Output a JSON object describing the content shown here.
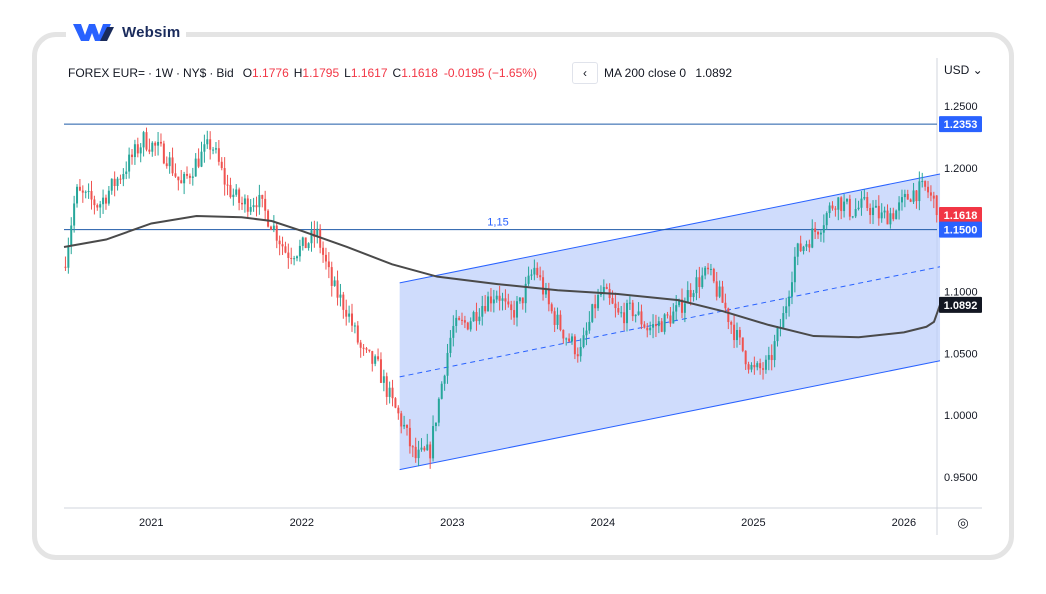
{
  "brand": {
    "name": "Websim",
    "logo_icon": "websim-w-logo-icon",
    "color": "#2962ff"
  },
  "legend": {
    "symbol": "FOREX EUR=",
    "interval": "1W",
    "exchange": "NY$",
    "price_type": "Bid",
    "sep": "·",
    "o_label": "O",
    "o_value": "1.1776",
    "h_label": "H",
    "h_value": "1.1795",
    "l_label": "L",
    "l_value": "1.1617",
    "c_label": "C",
    "c_value": "1.1618",
    "change": "-0.0195 (−1.65%)"
  },
  "collapse_icon": "‹",
  "ma_legend": {
    "label": "MA 200 close 0",
    "value": "1.0892"
  },
  "currency": "USD ⌄",
  "settings_icon": "◎",
  "colors": {
    "up": "#26a69a",
    "down": "#ef5350",
    "channel_fill": "#bbcdfb",
    "channel_line": "#2962ff",
    "ma": "#4a4a4a",
    "hline": "#1e5aa8"
  },
  "chart_data": {
    "type": "candlestick",
    "x_axis": {
      "tick_labels": [
        "2021",
        "2022",
        "2023",
        "2024",
        "2025",
        "2026"
      ]
    },
    "y_axis": {
      "range": [
        0.925,
        1.2645
      ],
      "tick_labels": [
        "1.2500",
        "1.2000",
        "1.1500",
        "1.1000",
        "1.0500",
        "1.0000",
        "0.9500"
      ],
      "tick_values": [
        1.25,
        1.2,
        1.15,
        1.1,
        1.05,
        1.0,
        0.95
      ]
    },
    "price_markers": [
      {
        "value": 1.2353,
        "label": "1.2353",
        "bg": "#2962ff",
        "fg": "#ffffff"
      },
      {
        "value": 1.1618,
        "label": "1.1618",
        "bg": "#f23645",
        "fg": "#ffffff"
      },
      {
        "value": 1.15,
        "label": "1.1500",
        "bg": "#2962ff",
        "fg": "#ffffff"
      },
      {
        "value": 1.0892,
        "label": "1.0892",
        "bg": "#131722",
        "fg": "#ffffff"
      }
    ],
    "horizontal_lines": [
      {
        "value": 1.2353
      },
      {
        "value": 1.15,
        "label": "1,15"
      }
    ],
    "channel": {
      "start_year": 2022.65,
      "end_year": 2026.24,
      "upper": [
        1.107,
        1.195
      ],
      "lower": [
        0.956,
        1.044
      ],
      "middle": [
        1.031,
        1.12
      ]
    },
    "ma200": [
      [
        2020.42,
        1.136
      ],
      [
        2020.7,
        1.142
      ],
      [
        2021.0,
        1.155
      ],
      [
        2021.3,
        1.161
      ],
      [
        2021.6,
        1.16
      ],
      [
        2021.8,
        1.157
      ],
      [
        2022.0,
        1.149
      ],
      [
        2022.3,
        1.136
      ],
      [
        2022.6,
        1.122
      ],
      [
        2022.9,
        1.112
      ],
      [
        2023.3,
        1.106
      ],
      [
        2023.7,
        1.101
      ],
      [
        2024.1,
        1.098
      ],
      [
        2024.5,
        1.093
      ],
      [
        2024.8,
        1.084
      ],
      [
        2025.1,
        1.073
      ],
      [
        2025.4,
        1.064
      ],
      [
        2025.7,
        1.063
      ],
      [
        2026.0,
        1.067
      ],
      [
        2026.15,
        1.0715
      ],
      [
        2026.2,
        1.0755
      ],
      [
        2026.24,
        1.0892
      ]
    ],
    "price_path": [
      [
        2020.42,
        1.12
      ],
      [
        2020.5,
        1.18
      ],
      [
        2020.65,
        1.17
      ],
      [
        2020.8,
        1.195
      ],
      [
        2020.95,
        1.223
      ],
      [
        2021.1,
        1.21
      ],
      [
        2021.2,
        1.185
      ],
      [
        2021.3,
        1.205
      ],
      [
        2021.4,
        1.22
      ],
      [
        2021.5,
        1.185
      ],
      [
        2021.6,
        1.17
      ],
      [
        2021.7,
        1.175
      ],
      [
        2021.8,
        1.155
      ],
      [
        2021.9,
        1.131
      ],
      [
        2022.0,
        1.135
      ],
      [
        2022.1,
        1.147
      ],
      [
        2022.2,
        1.105
      ],
      [
        2022.3,
        1.085
      ],
      [
        2022.4,
        1.05
      ],
      [
        2022.5,
        1.04
      ],
      [
        2022.6,
        1.01
      ],
      [
        2022.68,
        0.99
      ],
      [
        2022.75,
        0.965
      ],
      [
        2022.85,
        0.97
      ],
      [
        2022.95,
        1.04
      ],
      [
        2023.0,
        1.07
      ],
      [
        2023.1,
        1.075
      ],
      [
        2023.2,
        1.09
      ],
      [
        2023.3,
        1.1
      ],
      [
        2023.38,
        1.08
      ],
      [
        2023.45,
        1.09
      ],
      [
        2023.55,
        1.12
      ],
      [
        2023.65,
        1.085
      ],
      [
        2023.75,
        1.065
      ],
      [
        2023.85,
        1.05
      ],
      [
        2023.95,
        1.09
      ],
      [
        2024.0,
        1.1
      ],
      [
        2024.1,
        1.08
      ],
      [
        2024.2,
        1.085
      ],
      [
        2024.3,
        1.07
      ],
      [
        2024.4,
        1.075
      ],
      [
        2024.5,
        1.085
      ],
      [
        2024.6,
        1.105
      ],
      [
        2024.7,
        1.115
      ],
      [
        2024.8,
        1.09
      ],
      [
        2024.9,
        1.06
      ],
      [
        2025.0,
        1.035
      ],
      [
        2025.1,
        1.04
      ],
      [
        2025.2,
        1.08
      ],
      [
        2025.28,
        1.13
      ],
      [
        2025.35,
        1.14
      ],
      [
        2025.45,
        1.155
      ],
      [
        2025.55,
        1.175
      ],
      [
        2025.65,
        1.165
      ],
      [
        2025.75,
        1.17
      ],
      [
        2025.85,
        1.16
      ],
      [
        2025.95,
        1.165
      ],
      [
        2026.05,
        1.18
      ],
      [
        2026.15,
        1.183
      ],
      [
        2026.24,
        1.1618
      ]
    ]
  }
}
